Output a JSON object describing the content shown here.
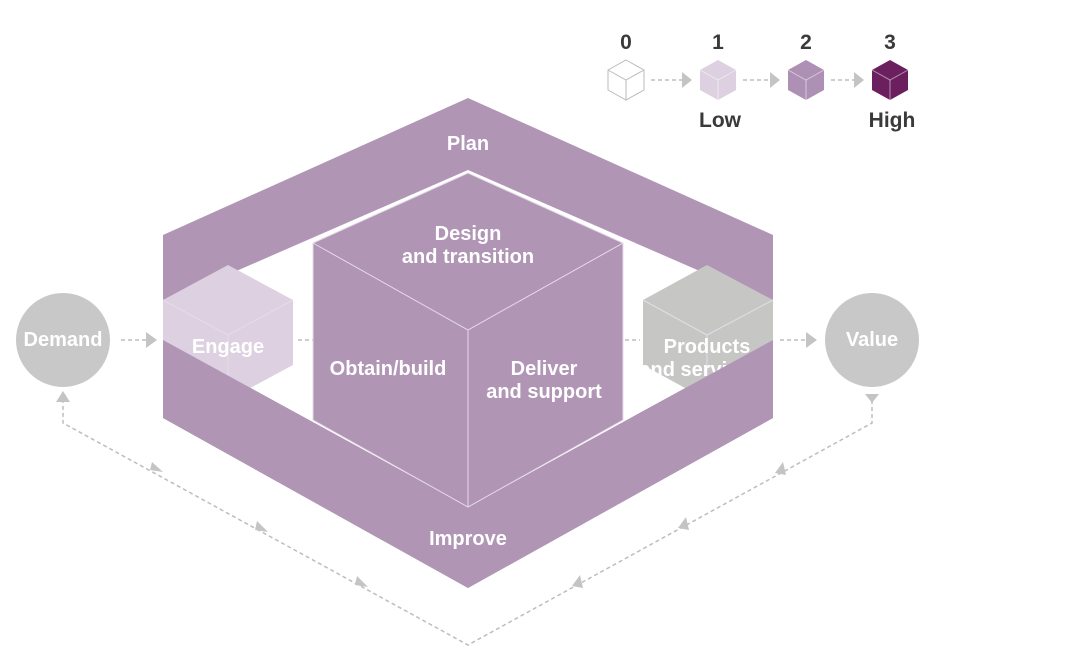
{
  "legend": {
    "levels": [
      "0",
      "1",
      "2",
      "3"
    ],
    "low_label": "Low",
    "high_label": "High",
    "colors": [
      "#ffffff",
      "#ddd0e0",
      "#ad90b3",
      "#6b1f5e"
    ]
  },
  "diagram": {
    "plan": "Plan",
    "improve": "Improve",
    "design": [
      "Design",
      "and transition"
    ],
    "obtain": "Obtain/build",
    "deliver": [
      "Deliver",
      "and support"
    ],
    "engage": "Engage",
    "products": [
      "Products",
      "and services"
    ],
    "demand": "Demand",
    "value": "Value"
  },
  "colors": {
    "chain": "#b095b5",
    "engage": "#ddd0e0",
    "products": "#c6c7c5",
    "circle": "#c8c8c8",
    "arrow": "#c4c4c4"
  }
}
